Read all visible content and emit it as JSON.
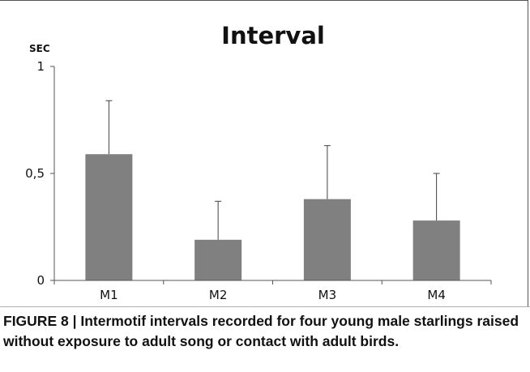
{
  "chart_data": {
    "type": "bar",
    "title": "Interval",
    "ylabel": "SEC",
    "xlabel": "",
    "categories": [
      "M1",
      "M2",
      "M3",
      "M4"
    ],
    "values": [
      0.59,
      0.19,
      0.38,
      0.28
    ],
    "error_plus": [
      0.25,
      0.18,
      0.25,
      0.22
    ],
    "ylim": [
      0,
      1
    ],
    "yticks": [
      {
        "value": 0,
        "label": "0"
      },
      {
        "value": 0.5,
        "label": "0,5"
      },
      {
        "value": 1,
        "label": "1"
      }
    ],
    "grid": false,
    "legend": "none",
    "bar_color": "#808080",
    "error_bar_color": "#404040"
  },
  "caption": "FIGURE 8 | Intermotif intervals recorded for four young male starlings raised without exposure to adult song or contact with adult birds."
}
